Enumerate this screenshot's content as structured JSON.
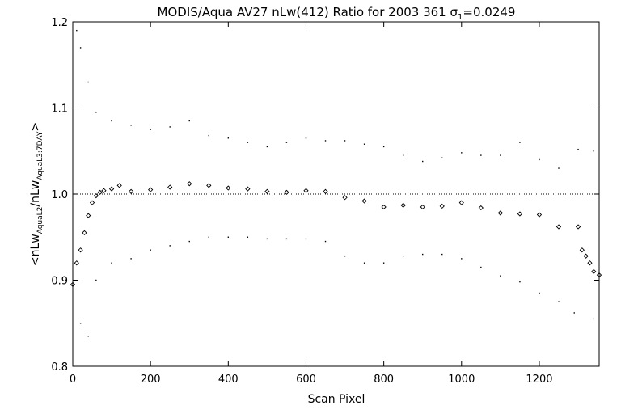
{
  "chart_data": {
    "type": "scatter",
    "title": {
      "main": "MODIS/Aqua AV27 nLw(412) Ratio for 2003 361 ",
      "sigma": "σ",
      "sigma_sub": "1",
      "sigma_value": "=0.0249"
    },
    "xlabel": "Scan Pixel",
    "ylabel": {
      "a": "<nLw",
      "a_sub": "AquaL2",
      "b": "/nLw",
      "b_sub": "AquaL3:7DAY",
      "c": ">"
    },
    "xlim": [
      0,
      1354
    ],
    "ylim": [
      0.8,
      1.2
    ],
    "xticks": [
      0,
      200,
      400,
      600,
      800,
      1000,
      1200
    ],
    "xtick_labels": [
      "0",
      "200",
      "400",
      "600",
      "800",
      "1000",
      "1200"
    ],
    "yticks": [
      0.8,
      0.9,
      1.0,
      1.1,
      1.2
    ],
    "ytick_labels": [
      "0.8",
      "0.9",
      "1.0",
      "1.1",
      "1.2"
    ],
    "reference_line": 1.0,
    "grid": false,
    "mean_series": {
      "marker": "diamond",
      "x": [
        0,
        10,
        20,
        30,
        40,
        50,
        60,
        70,
        80,
        100,
        120,
        150,
        200,
        250,
        300,
        350,
        400,
        450,
        500,
        550,
        600,
        650,
        700,
        750,
        800,
        850,
        900,
        950,
        1000,
        1050,
        1100,
        1150,
        1200,
        1250,
        1300,
        1310,
        1320,
        1330,
        1340,
        1354
      ],
      "y": [
        0.895,
        0.92,
        0.935,
        0.955,
        0.975,
        0.99,
        0.998,
        1.002,
        1.004,
        1.006,
        1.01,
        1.003,
        1.005,
        1.008,
        1.012,
        1.01,
        1.007,
        1.006,
        1.003,
        1.002,
        1.004,
        1.003,
        0.996,
        0.992,
        0.985,
        0.987,
        0.985,
        0.986,
        0.99,
        0.984,
        0.978,
        0.977,
        0.976,
        0.962,
        0.962,
        0.935,
        0.928,
        0.92,
        0.91,
        0.906
      ]
    },
    "upper_series": {
      "marker": "dot",
      "x": [
        10,
        20,
        40,
        60,
        100,
        150,
        200,
        250,
        300,
        350,
        400,
        450,
        500,
        550,
        600,
        650,
        700,
        750,
        800,
        850,
        900,
        950,
        1000,
        1050,
        1100,
        1150,
        1200,
        1250,
        1300,
        1340
      ],
      "y": [
        1.19,
        1.17,
        1.13,
        1.095,
        1.085,
        1.08,
        1.075,
        1.078,
        1.085,
        1.068,
        1.065,
        1.06,
        1.055,
        1.06,
        1.065,
        1.062,
        1.062,
        1.058,
        1.055,
        1.045,
        1.038,
        1.042,
        1.048,
        1.045,
        1.045,
        1.06,
        1.04,
        1.03,
        1.052,
        1.05
      ]
    },
    "lower_series": {
      "marker": "dot",
      "x": [
        20,
        40,
        60,
        100,
        150,
        200,
        250,
        300,
        350,
        400,
        450,
        500,
        550,
        600,
        650,
        700,
        750,
        800,
        850,
        900,
        950,
        1000,
        1050,
        1100,
        1150,
        1200,
        1250,
        1290,
        1340
      ],
      "y": [
        0.85,
        0.835,
        0.9,
        0.92,
        0.925,
        0.935,
        0.94,
        0.945,
        0.95,
        0.95,
        0.95,
        0.948,
        0.948,
        0.948,
        0.945,
        0.928,
        0.92,
        0.92,
        0.928,
        0.93,
        0.93,
        0.925,
        0.915,
        0.905,
        0.898,
        0.885,
        0.875,
        0.862,
        0.855
      ]
    }
  }
}
